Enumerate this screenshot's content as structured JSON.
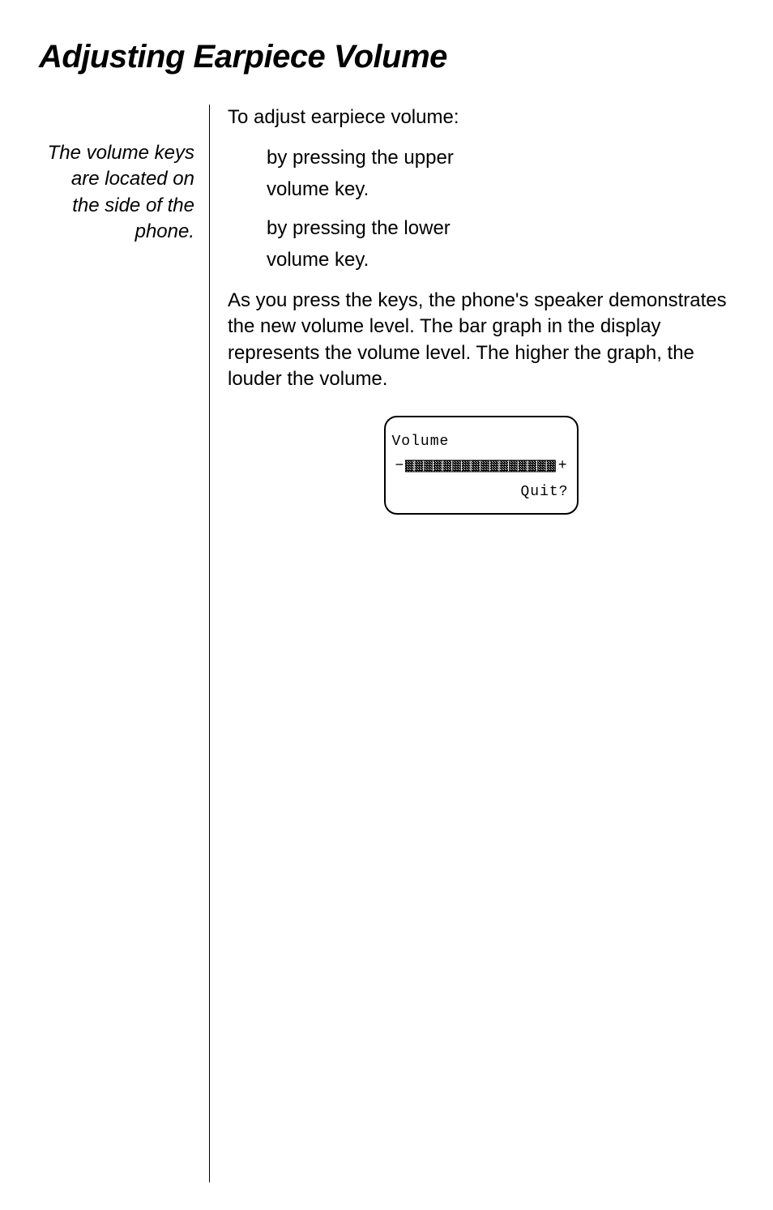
{
  "heading": "Adjusting Earpiece Volume",
  "sidebar": {
    "note": "The volume keys are located on the side of the phone."
  },
  "main": {
    "intro": "To adjust earpiece volume:",
    "bullets": [
      {
        "right": "by pressing the upper",
        "left": "volume key."
      },
      {
        "right": "by pressing the lower",
        "left": "volume key."
      }
    ],
    "paragraph": "As you press the keys, the phone's speaker demonstrates the new volume level. The bar graph in the display represents the volume level. The higher the graph, the louder the volume."
  },
  "screen": {
    "title": "Volume",
    "minus": "−",
    "plus": "+",
    "quit_label": "Quit?",
    "bar": {
      "segments": 16,
      "seg_width": 10,
      "seg_gap": 1,
      "max_height": 14,
      "min_height": 14,
      "fill_color": "#000000",
      "pattern_color": "#ffffff",
      "viewbox_w": 176,
      "viewbox_h": 16
    }
  },
  "colors": {
    "text": "#000000",
    "background": "#ffffff",
    "divider": "#000000",
    "border": "#000000"
  }
}
